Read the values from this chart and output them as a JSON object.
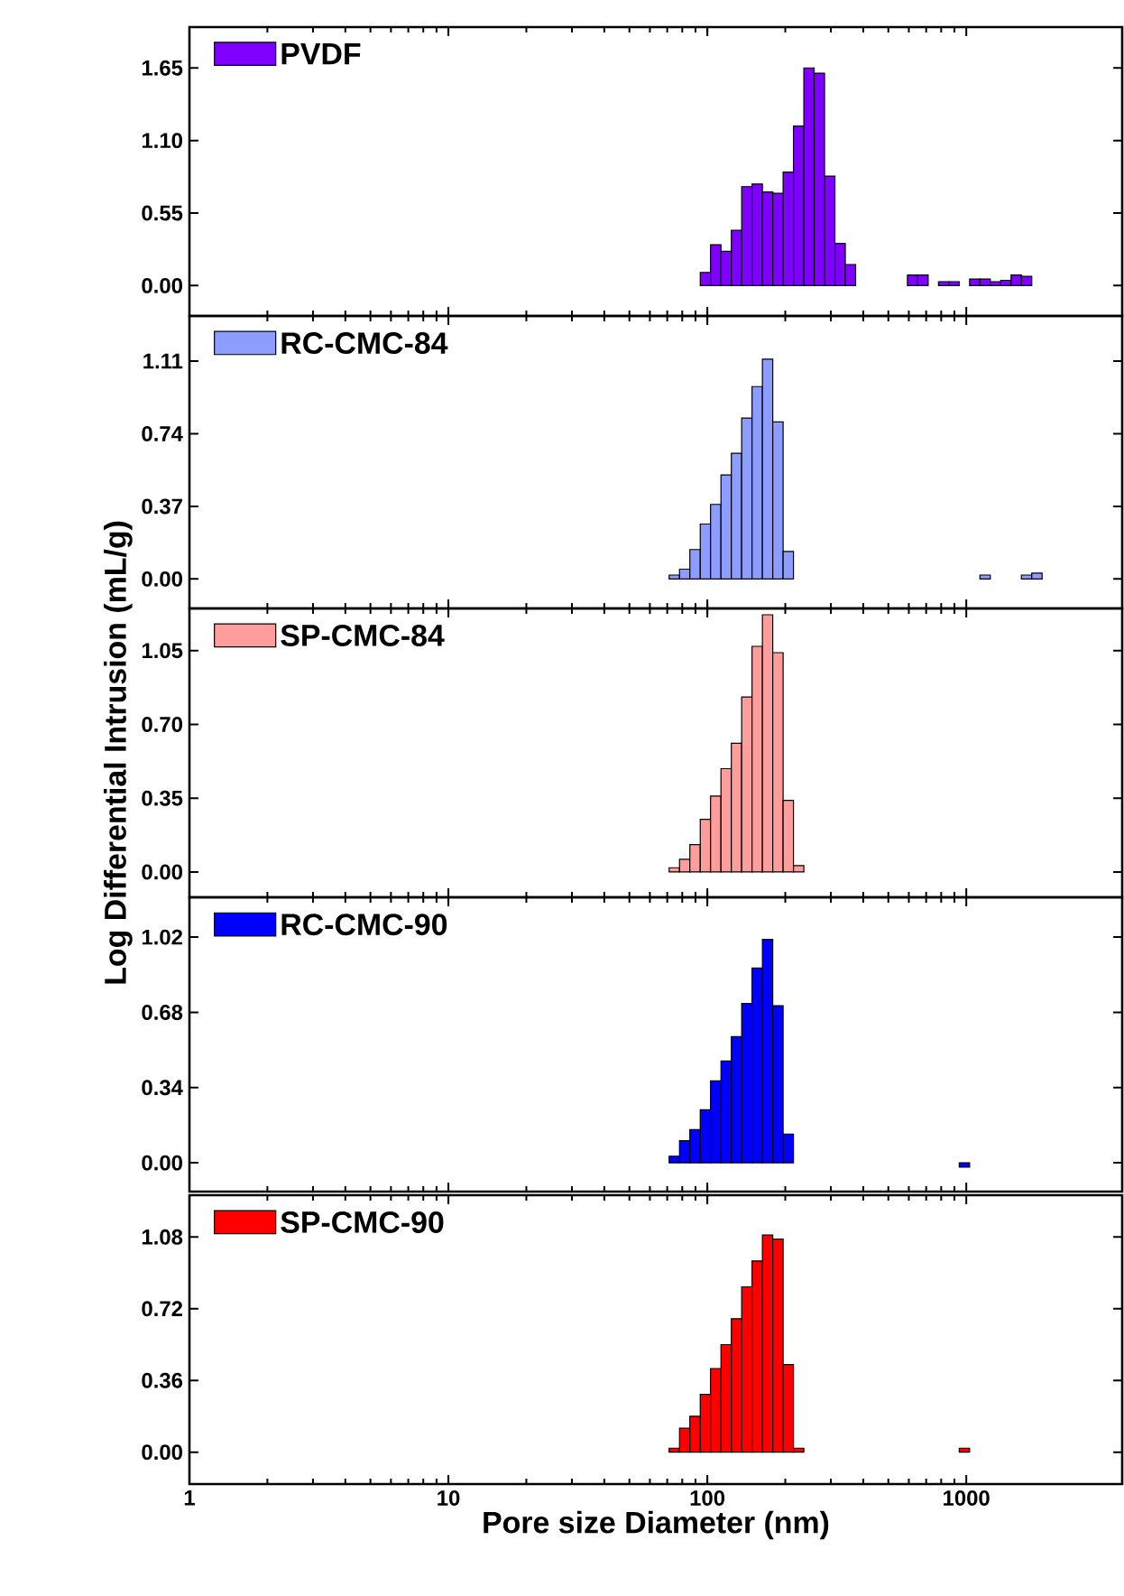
{
  "chart_data": [
    {
      "type": "histogram",
      "bins": [
        93.9,
        102.9,
        112.9,
        123.8,
        135.7,
        148.8,
        163.2,
        178.9,
        196.2,
        215.1,
        235.9,
        258.6,
        283.6,
        311.0,
        341.0,
        373.9,
        409.9,
        449.5,
        492.9,
        540.4,
        592.6,
        649.8,
        712.5,
        781.3,
        856.7,
        939.3,
        1030,
        1129,
        1238,
        1358,
        1489,
        1632,
        1790
      ],
      "series": [
        {
          "name": "PVDF",
          "color": "#7f00ff",
          "values": [
            0.1,
            0.31,
            0.26,
            0.42,
            0.75,
            0.77,
            0.71,
            0.7,
            0.86,
            1.21,
            1.65,
            1.61,
            0.83,
            0.32,
            0.16,
            null,
            null,
            null,
            null,
            null,
            0.08,
            0.08,
            null,
            0.03,
            0.03,
            null,
            0.05,
            0.05,
            0.03,
            0.04,
            0.08,
            0.07
          ]
        }
      ],
      "log": "x",
      "xlim": [
        1,
        4000
      ],
      "xticks": [
        1,
        10,
        100,
        1000
      ],
      "ylim": [
        -0.23,
        1.96
      ],
      "yticks": [
        {
          "value": 0,
          "label": "0.00"
        },
        {
          "value": 0.55,
          "label": "0.55"
        },
        {
          "value": 1.1,
          "label": "1.10"
        },
        {
          "value": 1.65,
          "label": "1.65"
        }
      ],
      "legend": "top left",
      "tick_labels": "y"
    },
    {
      "type": "histogram",
      "bins": [
        71.2,
        78.1,
        85.6,
        93.9,
        102.9,
        112.9,
        123.8,
        135.7,
        148.8,
        163.2,
        178.9,
        196.2,
        215.1,
        235.9,
        258.6,
        283.6,
        311.0,
        341.0,
        373.9,
        409.9,
        449.5,
        492.9,
        540.4,
        592.6,
        649.8,
        712.5,
        781.3,
        856.7,
        939.3,
        1030,
        1129,
        1238,
        1358,
        1489,
        1632,
        1790,
        1963
      ],
      "series": [
        {
          "name": "RC-CMC-84",
          "color": "#8c9cff",
          "values": [
            0.02,
            0.05,
            0.15,
            0.28,
            0.38,
            0.53,
            0.64,
            0.82,
            0.98,
            1.12,
            0.8,
            0.14,
            null,
            null,
            null,
            null,
            null,
            null,
            null,
            null,
            null,
            null,
            null,
            null,
            null,
            null,
            null,
            null,
            null,
            null,
            0.02,
            null,
            null,
            null,
            0.02,
            0.03
          ]
        }
      ],
      "log": "x",
      "xlim": [
        1,
        4000
      ],
      "xticks": [
        1,
        10,
        100,
        1000
      ],
      "ylim": [
        -0.15,
        1.34
      ],
      "yticks": [
        {
          "value": 0,
          "label": "0.00"
        },
        {
          "value": 0.37,
          "label": "0.37"
        },
        {
          "value": 0.74,
          "label": "0.74"
        },
        {
          "value": 1.11,
          "label": "1.11"
        }
      ],
      "legend": "top left",
      "tick_labels": "y"
    },
    {
      "type": "histogram",
      "bins": [
        71.2,
        78.1,
        85.6,
        93.9,
        102.9,
        112.9,
        123.8,
        135.7,
        148.8,
        163.2,
        178.9,
        196.2,
        215.1,
        235.9
      ],
      "series": [
        {
          "name": "SP-CMC-84",
          "color": "#ff9d9d",
          "values": [
            0.02,
            0.06,
            0.13,
            0.25,
            0.36,
            0.49,
            0.61,
            0.83,
            1.07,
            1.22,
            1.04,
            0.34,
            0.03
          ]
        }
      ],
      "log": "x",
      "xlim": [
        1,
        4000
      ],
      "xticks": [
        1,
        10,
        100,
        1000
      ],
      "ylim": [
        -0.12,
        1.25
      ],
      "yticks": [
        {
          "value": 0,
          "label": "0.00"
        },
        {
          "value": 0.35,
          "label": "0.35"
        },
        {
          "value": 0.7,
          "label": "0.70"
        },
        {
          "value": 1.05,
          "label": "1.05"
        }
      ],
      "ylabel": "Log Differential Intrusion (mL/g)",
      "legend": "top left",
      "tick_labels": "y"
    },
    {
      "type": "histogram",
      "bins": [
        71.2,
        78.1,
        85.6,
        93.9,
        102.9,
        112.9,
        123.8,
        135.7,
        148.8,
        163.2,
        178.9,
        196.2,
        215.1,
        235.9,
        258.6,
        283.6,
        311.0,
        341.0,
        373.9,
        409.9,
        449.5,
        492.9,
        540.4,
        592.6,
        649.8,
        712.5,
        781.3,
        856.7,
        939.3,
        1030
      ],
      "series": [
        {
          "name": "RC-CMC-90",
          "color": "#0000ff",
          "values": [
            0.03,
            0.1,
            0.15,
            0.24,
            0.37,
            0.46,
            0.57,
            0.72,
            0.88,
            1.01,
            0.71,
            0.13,
            null,
            null,
            null,
            null,
            null,
            null,
            null,
            null,
            null,
            null,
            null,
            null,
            null,
            null,
            null,
            null,
            -0.02
          ]
        }
      ],
      "log": "x",
      "xlim": [
        1,
        4000
      ],
      "xticks": [
        1,
        10,
        100,
        1000
      ],
      "ylim": [
        -0.13,
        1.2
      ],
      "yticks": [
        {
          "value": 0,
          "label": "0.00"
        },
        {
          "value": 0.34,
          "label": "0.34"
        },
        {
          "value": 0.68,
          "label": "0.68"
        },
        {
          "value": 1.02,
          "label": "1.02"
        }
      ],
      "legend": "top left",
      "tick_labels": "y"
    },
    {
      "type": "histogram",
      "bins": [
        71.2,
        78.1,
        85.6,
        93.9,
        102.9,
        112.9,
        123.8,
        135.7,
        148.8,
        163.2,
        178.9,
        196.2,
        215.1,
        235.9,
        258.6,
        283.6,
        311.0,
        341.0,
        373.9,
        409.9,
        449.5,
        492.9,
        540.4,
        592.6,
        649.8,
        712.5,
        781.3,
        856.7,
        939.3,
        1030
      ],
      "series": [
        {
          "name": "SP-CMC-90",
          "color": "#ff0000",
          "values": [
            0.02,
            0.12,
            0.18,
            0.29,
            0.42,
            0.54,
            0.67,
            0.83,
            0.96,
            1.09,
            1.07,
            0.44,
            0.02,
            null,
            null,
            null,
            null,
            null,
            null,
            null,
            null,
            null,
            null,
            null,
            null,
            null,
            null,
            null,
            0.02
          ]
        }
      ],
      "log": "x",
      "xlim": [
        1,
        4000
      ],
      "xticks": [
        1,
        10,
        100,
        1000
      ],
      "ylim": [
        -0.16,
        1.29
      ],
      "yticks": [
        {
          "value": 0,
          "label": "0.00"
        },
        {
          "value": 0.36,
          "label": "0.36"
        },
        {
          "value": 0.72,
          "label": "0.72"
        },
        {
          "value": 1.08,
          "label": "1.08"
        }
      ],
      "xlabel": "Pore size Diameter (nm)",
      "legend": "top left"
    }
  ]
}
